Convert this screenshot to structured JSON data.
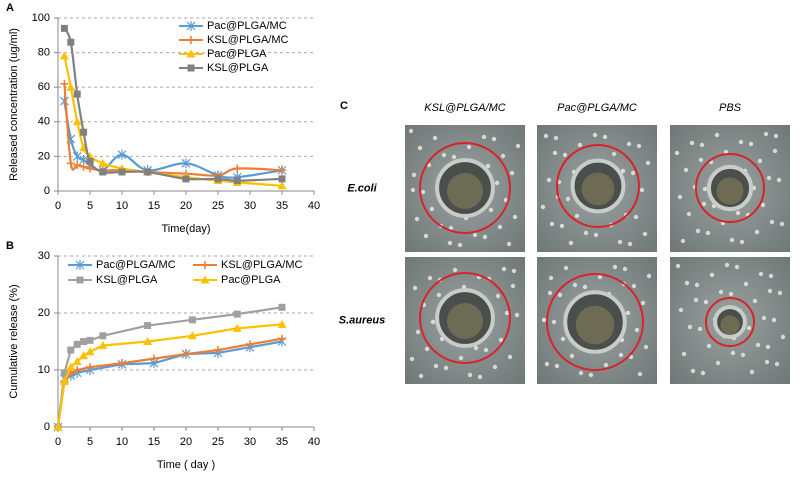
{
  "chart_data": [
    {
      "type": "line",
      "panel_label": "A",
      "smooth": true,
      "x_label": "Time(day)",
      "y_label": "Released concentration (ug/ml)",
      "xlim": [
        0,
        40
      ],
      "xticks": [
        0,
        5,
        10,
        15,
        20,
        25,
        30,
        35,
        40
      ],
      "ylim": [
        0,
        100
      ],
      "yticks": [
        0,
        20,
        40,
        60,
        80,
        100
      ],
      "grid": true,
      "legend": "upper right",
      "legend_columns": 1,
      "series": [
        {
          "name": "Pac@PLGA/MC",
          "color": "#5b9bd5",
          "marker": "star",
          "x": [
            1,
            2,
            3,
            4,
            5,
            7,
            10,
            14,
            20,
            25,
            28,
            35
          ],
          "values": [
            52,
            30,
            20,
            18,
            15,
            12,
            21,
            12,
            16,
            9,
            8,
            12
          ]
        },
        {
          "name": "KSL@PLGA/MC",
          "color": "#ed7d31",
          "marker": "dash",
          "x": [
            1,
            2,
            3,
            4,
            5,
            7,
            10,
            14,
            20,
            25,
            28,
            35
          ],
          "values": [
            62,
            16,
            15,
            14,
            13,
            12,
            12,
            11,
            10,
            9,
            13,
            12
          ]
        },
        {
          "name": "Pac@PLGA",
          "color": "#ffc000",
          "marker": "triangle",
          "x": [
            1,
            2,
            3,
            4,
            5,
            7,
            10,
            14,
            20,
            25,
            28,
            35
          ],
          "values": [
            78,
            60,
            40,
            25,
            20,
            16,
            13,
            11,
            8,
            6,
            5,
            3
          ]
        },
        {
          "name": "KSL@PLGA",
          "color": "#808080",
          "marker": "square",
          "x": [
            1,
            2,
            3,
            4,
            5,
            7,
            10,
            14,
            20,
            25,
            28,
            35
          ],
          "values": [
            94,
            86,
            56,
            34,
            17,
            11,
            11,
            11,
            7,
            7,
            6,
            7
          ]
        }
      ]
    },
    {
      "type": "line",
      "panel_label": "B",
      "smooth": false,
      "x_label": "Time ( day )",
      "y_label": "Cumulative release (%)",
      "xlim": [
        0,
        40
      ],
      "xticks": [
        0,
        5,
        10,
        15,
        20,
        25,
        30,
        35,
        40
      ],
      "ylim": [
        0,
        30
      ],
      "yticks": [
        0,
        10,
        20,
        30
      ],
      "grid": true,
      "legend": "top",
      "legend_columns": 2,
      "series": [
        {
          "name": "Pac@PLGA/MC",
          "color": "#5b9bd5",
          "marker": "star",
          "x": [
            0,
            1,
            2,
            3,
            5,
            10,
            15,
            20,
            25,
            30,
            35
          ],
          "values": [
            0,
            8.5,
            9,
            9.5,
            10,
            11,
            11.2,
            12.8,
            13,
            14,
            15
          ]
        },
        {
          "name": "KSL@PLGA/MC",
          "color": "#ed7d31",
          "marker": "dash",
          "x": [
            0,
            1,
            2,
            3,
            5,
            10,
            15,
            20,
            25,
            30,
            35
          ],
          "values": [
            0,
            8,
            9.5,
            10,
            10.5,
            11.2,
            12,
            12.8,
            13.5,
            14.5,
            15.5
          ]
        },
        {
          "name": "KSL@PLGA",
          "color": "#a0a0a0",
          "marker": "square",
          "x": [
            0,
            1,
            2,
            3,
            4,
            5,
            7,
            14,
            21,
            28,
            35
          ],
          "values": [
            0,
            9.5,
            13.5,
            14.5,
            15,
            15.2,
            16,
            17.8,
            18.8,
            19.8,
            21
          ]
        },
        {
          "name": "Pac@PLGA",
          "color": "#ffc000",
          "marker": "triangle",
          "x": [
            0,
            1,
            2,
            3,
            4,
            5,
            7,
            14,
            21,
            28,
            35
          ],
          "values": [
            0,
            8,
            10.5,
            11.5,
            12.5,
            13.2,
            14.3,
            15,
            16,
            17.3,
            18
          ]
        }
      ]
    }
  ],
  "photo_panel": {
    "label": "C",
    "column_labels": [
      "KSL@PLGA/MC",
      "Pac@PLGA/MC",
      "PBS"
    ],
    "row_labels": [
      "E.coli",
      "S.aureus"
    ]
  }
}
